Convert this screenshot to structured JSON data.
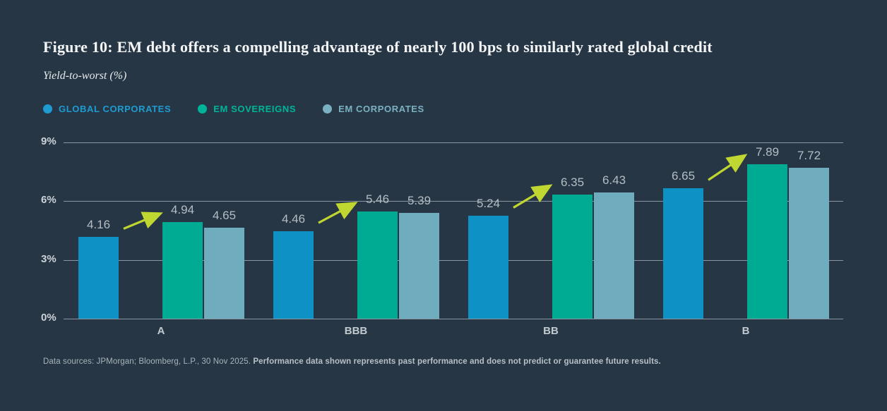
{
  "header": {
    "title": "Figure 10: EM debt offers a compelling advantage of nearly 100 bps to similarly rated global credit",
    "subtitle": "Yield-to-worst (%)"
  },
  "legend": [
    {
      "label": "GLOBAL CORPORATES",
      "color": "#1e9cd2"
    },
    {
      "label": "EM SOVEREIGNS",
      "color": "#00b49a"
    },
    {
      "label": "EM CORPORATES",
      "color": "#7ab1c2"
    }
  ],
  "chart_data": {
    "type": "bar",
    "title": "Figure 10: EM debt offers a compelling advantage of nearly 100 bps to similarly rated global credit",
    "ylabel": "Yield-to-worst (%)",
    "categories": [
      "A",
      "BBB",
      "BB",
      "B"
    ],
    "series": [
      {
        "name": "Global Corporates",
        "color": "#0e92c5",
        "values": [
          4.16,
          4.46,
          5.24,
          6.65
        ]
      },
      {
        "name": "EM Sovereigns",
        "color": "#00ab94",
        "values": [
          4.94,
          5.46,
          6.35,
          7.89
        ]
      },
      {
        "name": "EM Corporates",
        "color": "#6fadbe",
        "values": [
          4.65,
          5.39,
          6.43,
          7.72
        ]
      }
    ],
    "ylim": [
      0,
      9
    ],
    "yticks": [
      0,
      3,
      6,
      9
    ],
    "ytick_suffix": "%",
    "grid": true,
    "legend_position": "top-left",
    "annotations": [
      {
        "type": "arrow",
        "color": "#c0d731",
        "from_series": "Global Corporates",
        "to_series": "EM Sovereigns",
        "category": "A"
      },
      {
        "type": "arrow",
        "color": "#c0d731",
        "from_series": "Global Corporates",
        "to_series": "EM Sovereigns",
        "category": "BBB"
      },
      {
        "type": "arrow",
        "color": "#c0d731",
        "from_series": "Global Corporates",
        "to_series": "EM Sovereigns",
        "category": "BB"
      },
      {
        "type": "arrow",
        "color": "#c0d731",
        "from_series": "Global Corporates",
        "to_series": "EM Sovereigns",
        "category": "B"
      }
    ]
  },
  "footer": {
    "sources": "Data sources: JPMorgan; Bloomberg, L.P., 30 Nov 2025. ",
    "disclaimer": "Performance data shown represents past performance and does not predict or guarantee future results."
  }
}
